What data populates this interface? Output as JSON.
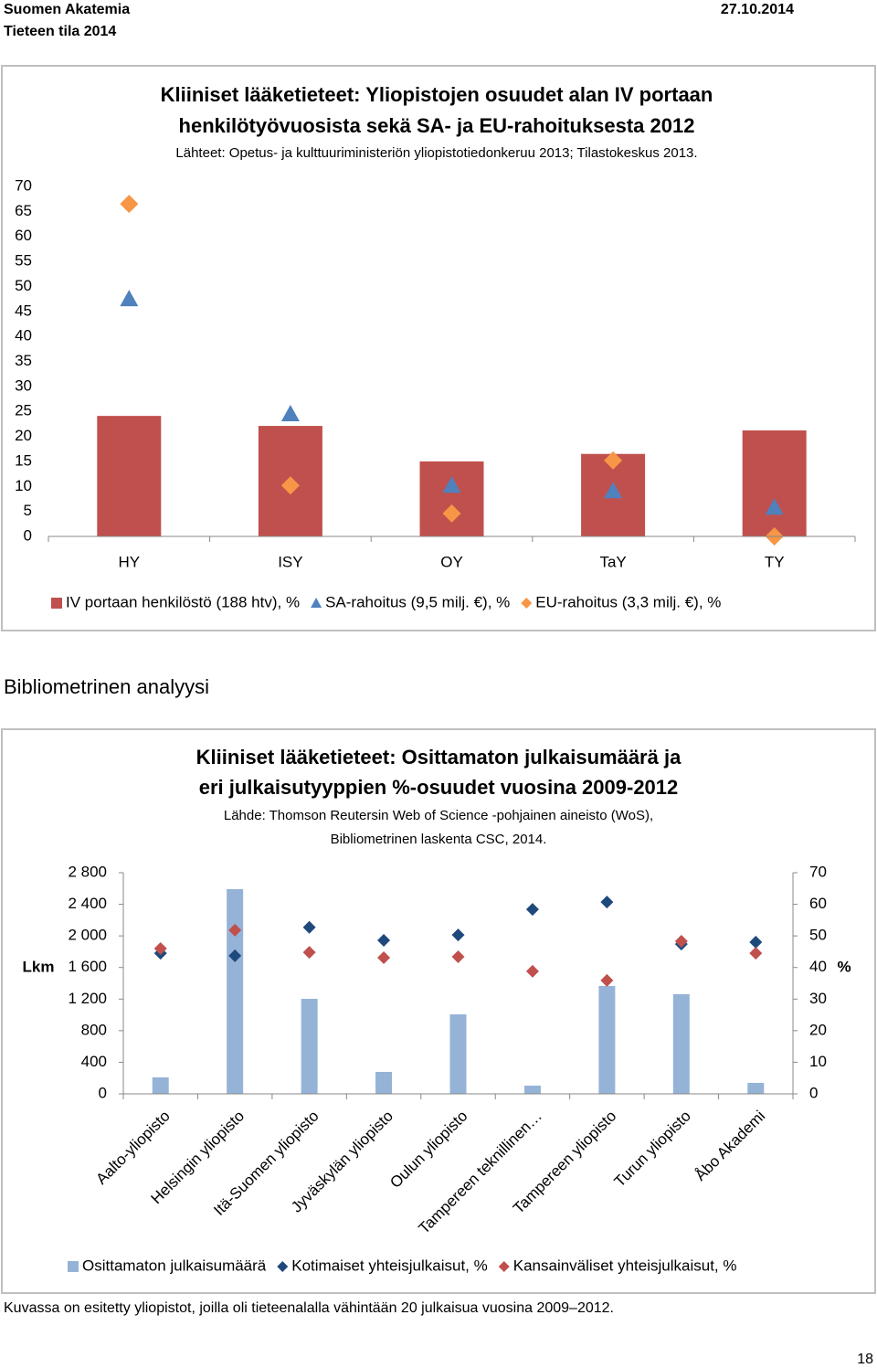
{
  "header": {
    "org": "Suomen Akatemia",
    "publication": "Tieteen tila 2014",
    "date": "27.10.2014"
  },
  "section_title": "Bibliometrinen analyysi",
  "footnote": "Kuvassa on esitetty yliopistot, joilla oli tieteenalalla vähintään 20 julkaisua vuosina 2009–2012.",
  "page_number": "18",
  "chart_data": [
    {
      "type": "combo",
      "title": [
        "Kliiniset lääketieteet: Yliopistojen osuudet alan IV portaan",
        "henkilötyövuosista sekä SA- ja EU-rahoituksesta 2012"
      ],
      "subtitle": [
        "Lähteet: Opetus- ja kulttuuriministeriön yliopistotiedonkeruu 2013; Tilastokeskus 2013."
      ],
      "categories": [
        "HY",
        "ISY",
        "OY",
        "TaY",
        "TY"
      ],
      "series": [
        {
          "name": "IV portaan henkilöstö (188 htv), %",
          "type": "bar",
          "color": "#c0504d",
          "values": [
            24.1,
            22.1,
            15.0,
            16.5,
            21.2
          ]
        },
        {
          "name": "SA-rahoitus (9,5 milj. €), %",
          "type": "scatter",
          "marker": "triangle",
          "color": "#4f81bd",
          "values": [
            47.5,
            24.5,
            10.2,
            9.1,
            5.8
          ]
        },
        {
          "name": "EU-rahoitus (3,3 milj. €), %",
          "type": "scatter",
          "marker": "diamond",
          "color": "#f79646",
          "values": [
            66.5,
            10.2,
            4.6,
            15.2,
            0
          ]
        }
      ],
      "ylim": [
        0,
        70
      ],
      "yticks": [
        0,
        5,
        10,
        15,
        20,
        25,
        30,
        35,
        40,
        45,
        50,
        55,
        60,
        65,
        70
      ],
      "grid": false,
      "legend": "bottom"
    },
    {
      "type": "combo",
      "title": [
        "Kliiniset lääketieteet: Osittamaton julkaisumäärä ja",
        "eri julkaisutyyppien %-osuudet vuosina 2009-2012"
      ],
      "subtitle": [
        "Lähde: Thomson Reutersin Web of Science -pohjainen aineisto (WoS),",
        "Bibliometrinen laskenta CSC, 2014."
      ],
      "ylabel": "Lkm",
      "y2label": "%",
      "categories": [
        "Aalto-yliopisto",
        "Helsingin yliopisto",
        "Itä-Suomen yliopisto",
        "Jyväskylän yliopisto",
        "Oulun yliopisto",
        "Tampereen teknillinen…",
        "Tampereen yliopisto",
        "Turun yliopisto",
        "Åbo Akademi"
      ],
      "series": [
        {
          "name": "Osittamaton julkaisumäärä",
          "type": "bar",
          "color": "#95b3d7",
          "values": [
            208,
            2592,
            1203,
            278,
            1007,
            104,
            1366,
            1262,
            139
          ]
        },
        {
          "name": "Kotimaiset yhteisjulkaisut, %",
          "type": "scatter",
          "marker": "diamond",
          "color": "#1f497d",
          "axis": "y2",
          "values": [
            44.5,
            43.7,
            52.7,
            48.6,
            50.3,
            58.4,
            60.7,
            47.4,
            48.0
          ]
        },
        {
          "name": "Kansainväliset yhteisjulkaisut, %",
          "type": "scatter",
          "marker": "diamond",
          "color": "#c0504d",
          "axis": "y2",
          "values": [
            46.0,
            51.8,
            44.8,
            43.1,
            43.4,
            38.8,
            35.9,
            48.3,
            44.5
          ]
        }
      ],
      "ylim": [
        0,
        2800
      ],
      "yticks": [
        0,
        400,
        800,
        {
          "value": 1200,
          "label": "1 200"
        },
        {
          "value": 1600,
          "label": "1 600"
        },
        {
          "value": 2000,
          "label": "2 000"
        },
        {
          "value": 2400,
          "label": "2 400"
        },
        {
          "value": 2800,
          "label": "2 800"
        }
      ],
      "y2lim": [
        0,
        70
      ],
      "y2ticks": [
        0,
        10,
        20,
        30,
        40,
        50,
        60,
        70
      ],
      "grid": false,
      "legend": "bottom"
    }
  ]
}
